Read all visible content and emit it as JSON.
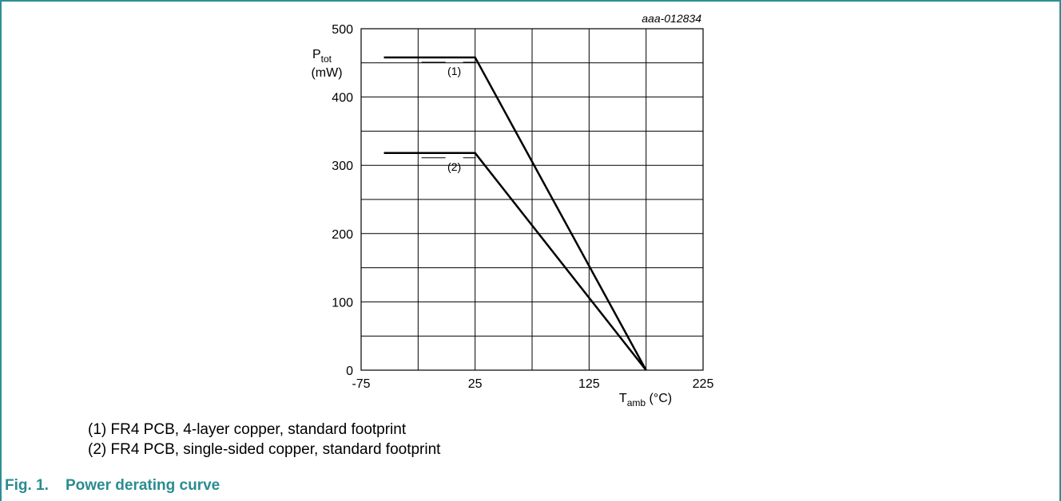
{
  "figure": {
    "code": "aaa-012834",
    "caption_number": "Fig. 1.",
    "caption_title": "Power derating curve",
    "notes": [
      "(1) FR4 PCB, 4-layer copper, standard footprint",
      "(2) FR4 PCB, single-sided copper, standard footprint"
    ]
  },
  "chart_data": {
    "type": "line",
    "xlabel_main": "T",
    "xlabel_sub": "amb",
    "xlabel_unit": " (°C)",
    "ylabel_main": "P",
    "ylabel_sub": "tot",
    "ylabel_unit": "(mW)",
    "xlim": [
      -75,
      225
    ],
    "ylim": [
      0,
      500
    ],
    "x_ticks": [
      -75,
      25,
      125,
      225
    ],
    "y_ticks": [
      0,
      100,
      200,
      300,
      400,
      500
    ],
    "x_grid_step": 50,
    "y_grid_step": 50,
    "grid": true,
    "series": [
      {
        "name": "(1)",
        "x": [
          -55,
          25,
          175
        ],
        "y": [
          458,
          458,
          0
        ]
      },
      {
        "name": "(2)",
        "x": [
          -55,
          25,
          175
        ],
        "y": [
          318,
          318,
          0
        ]
      }
    ]
  }
}
